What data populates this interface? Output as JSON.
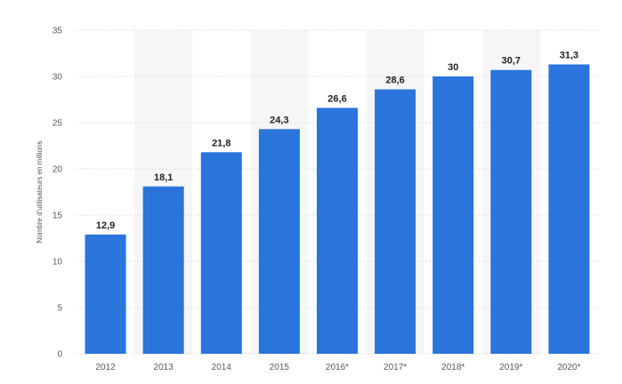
{
  "chart_data": {
    "type": "bar",
    "categories": [
      "2012",
      "2013",
      "2014",
      "2015",
      "2016*",
      "2017*",
      "2018*",
      "2019*",
      "2020*"
    ],
    "values": [
      12.9,
      18.1,
      21.8,
      24.3,
      26.6,
      28.6,
      30,
      30.7,
      31.3
    ],
    "data_labels": [
      "12,9",
      "18,1",
      "21,8",
      "24,3",
      "26,6",
      "28,6",
      "30",
      "30,7",
      "31,3"
    ],
    "title": "",
    "xlabel": "",
    "ylabel": "Nombre d'utilisateurs en millions",
    "ylim": [
      0,
      35
    ],
    "yticks": [
      0,
      5,
      10,
      15,
      20,
      25,
      30,
      35
    ],
    "grid": true,
    "legend": "none",
    "bar_color": "#2a74db",
    "band_color": "#f6f6f6"
  }
}
